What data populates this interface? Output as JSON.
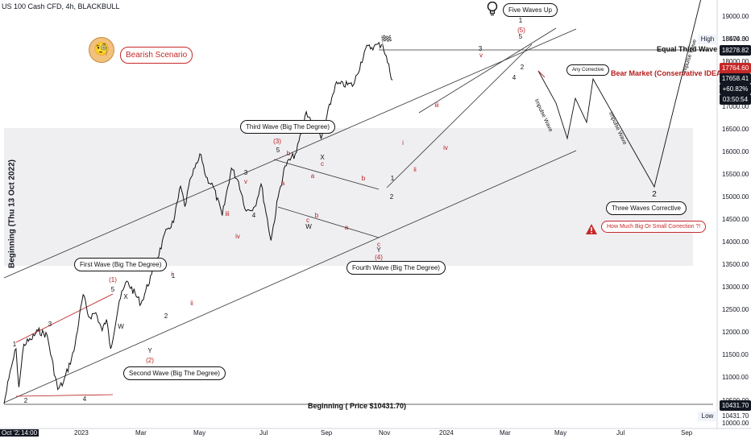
{
  "header": {
    "symbol_text": "US 100 Cash CFD, 4h, BLACKBULL"
  },
  "left_axis_title": "Beginning (Thu 13 Oct 2022)",
  "colors": {
    "price": "#111111",
    "wave_red": "#b71c1c",
    "bubble_red": "#c62828",
    "zone": "#e9eaee",
    "low_tag": "#131722"
  },
  "price_axis": {
    "ticks": [
      "19000.00",
      "18500.00",
      "18000.00",
      "17500.00",
      "17000.00",
      "16500.00",
      "16000.00",
      "15500.00",
      "15000.00",
      "14500.00",
      "14000.00",
      "13500.00",
      "13000.00",
      "12500.00",
      "12000.00",
      "11500.00",
      "11000.00",
      "10500.00",
      "10000.00"
    ],
    "high_label": "High",
    "high_value": "18474.30",
    "tag_top": "18278.82",
    "tag_mid": "17764.60",
    "current_price": "17658.41",
    "current_change": "+60.82%",
    "countdown": "03:50:54",
    "beginning_tag": "10431.70",
    "low_label": "Low",
    "low_value": "10431.70"
  },
  "time_axis": {
    "labels": [
      "Oct '22",
      "14:00",
      "2023",
      "Mar",
      "May",
      "Jul",
      "Sep",
      "Nov",
      "2024",
      "Mar",
      "May",
      "Jul",
      "Sep"
    ]
  },
  "annotations": {
    "first_wave": "First Wave (Big The Degree)",
    "second_wave": "Second Wave (Big The Degree)",
    "third_wave": "Third Wave (Big The Degree)",
    "fourth_wave": "Fourth Wave (Big The Degree)",
    "five_waves_up": "Five Waves Up",
    "bearish_scenario": "Bearish Scenario",
    "any_corrective": "Any Corrective",
    "three_waves_corrective": "Three Waves Corrective",
    "how_much": "How Much Big Or Small Correction ?!",
    "equal_third_wave": "Equal Third Wave",
    "bear_market": "Bear Market (Conservative IDEA)",
    "beginning_price": "Beginning ( Price $10431.70)",
    "impulse_wave_1": "Impulse Wave",
    "impulse_wave_2": "Impulse Wave",
    "impulse_wave_3": "Impulse Wave"
  },
  "wave_marks": [
    {
      "t": "1",
      "c": "k"
    },
    {
      "t": "2",
      "c": "k"
    },
    {
      "t": "3",
      "c": "k"
    },
    {
      "t": "4",
      "c": "k"
    },
    {
      "t": "(1)",
      "c": "r"
    },
    {
      "t": "5",
      "c": "k"
    },
    {
      "t": "X",
      "c": "k"
    },
    {
      "t": "W",
      "c": "k"
    },
    {
      "t": "Y",
      "c": "k"
    },
    {
      "t": "(2)",
      "c": "r"
    },
    {
      "t": "i",
      "c": "r"
    },
    {
      "t": "ii",
      "c": "r"
    },
    {
      "t": "1",
      "c": "k"
    },
    {
      "t": "2",
      "c": "k"
    },
    {
      "t": "iii",
      "c": "r"
    },
    {
      "t": "iv",
      "c": "r"
    },
    {
      "t": "3",
      "c": "k"
    },
    {
      "t": "4",
      "c": "k"
    },
    {
      "t": "v",
      "c": "r"
    },
    {
      "t": "(3)",
      "c": "r"
    },
    {
      "t": "5",
      "c": "k"
    },
    {
      "t": "b",
      "c": "r"
    },
    {
      "t": "a",
      "c": "r"
    },
    {
      "t": "a",
      "c": "r"
    },
    {
      "t": "b",
      "c": "r"
    },
    {
      "t": "c",
      "c": "r"
    },
    {
      "t": "W",
      "c": "k"
    },
    {
      "t": "X",
      "c": "k"
    },
    {
      "t": "c",
      "c": "r"
    },
    {
      "t": "a",
      "c": "r"
    },
    {
      "t": "b",
      "c": "r"
    },
    {
      "t": "c",
      "c": "r"
    },
    {
      "t": "Y",
      "c": "k"
    },
    {
      "t": "(4)",
      "c": "r"
    },
    {
      "t": "1",
      "c": "k"
    },
    {
      "t": "2",
      "c": "k"
    },
    {
      "t": "i",
      "c": "r"
    },
    {
      "t": "ii",
      "c": "r"
    },
    {
      "t": "iii",
      "c": "r"
    },
    {
      "t": "iv",
      "c": "r"
    },
    {
      "t": "3",
      "c": "k"
    },
    {
      "t": "v",
      "c": "r"
    },
    {
      "t": "4",
      "c": "k"
    },
    {
      "t": "5",
      "c": "k"
    },
    {
      "t": "(5)",
      "c": "r"
    },
    {
      "t": "1",
      "c": "k"
    },
    {
      "t": "2",
      "c": "k"
    }
  ],
  "chart_data": {
    "type": "line",
    "title": "US 100 Cash CFD, 4h, BLACKBULL",
    "ylim": [
      10000,
      19300
    ],
    "x_start": "2022-10-13",
    "series": [
      {
        "values": [
          {
            "d": "2022-10-13",
            "p": 10431.7
          },
          {
            "d": "2022-10-20",
            "p": 11000
          },
          {
            "d": "2022-10-25",
            "p": 11350
          },
          {
            "d": "2022-10-30",
            "p": 11650
          },
          {
            "d": "2022-11-03",
            "p": 10800
          },
          {
            "d": "2022-11-10",
            "p": 11750
          },
          {
            "d": "2022-11-20",
            "p": 11850
          },
          {
            "d": "2022-11-30",
            "p": 12050
          },
          {
            "d": "2022-12-13",
            "p": 11950
          },
          {
            "d": "2022-12-28",
            "p": 10750
          },
          {
            "d": "2023-01-05",
            "p": 10900
          },
          {
            "d": "2023-01-20",
            "p": 11600
          },
          {
            "d": "2023-02-02",
            "p": 12850
          },
          {
            "d": "2023-02-10",
            "p": 12350
          },
          {
            "d": "2023-02-20",
            "p": 12450
          },
          {
            "d": "2023-03-01",
            "p": 12050
          },
          {
            "d": "2023-03-07",
            "p": 12300
          },
          {
            "d": "2023-03-13",
            "p": 11650
          },
          {
            "d": "2023-03-25",
            "p": 12700
          },
          {
            "d": "2023-04-05",
            "p": 13150
          },
          {
            "d": "2023-04-25",
            "p": 12650
          },
          {
            "d": "2023-05-10",
            "p": 13300
          },
          {
            "d": "2023-06-01",
            "p": 14300
          },
          {
            "d": "2023-06-10",
            "p": 14450
          },
          {
            "d": "2023-06-20",
            "p": 15250
          },
          {
            "d": "2023-06-26",
            "p": 14800
          },
          {
            "d": "2023-07-05",
            "p": 15450
          },
          {
            "d": "2023-07-19",
            "p": 15950
          },
          {
            "d": "2023-07-26",
            "p": 15450
          },
          {
            "d": "2023-08-05",
            "p": 15250
          },
          {
            "d": "2023-08-18",
            "p": 14600
          },
          {
            "d": "2023-08-31",
            "p": 15650
          },
          {
            "d": "2023-09-10",
            "p": 15350
          },
          {
            "d": "2023-09-21",
            "p": 14700
          },
          {
            "d": "2023-10-03",
            "p": 14800
          },
          {
            "d": "2023-10-12",
            "p": 15300
          },
          {
            "d": "2023-10-26",
            "p": 14050
          },
          {
            "d": "2023-11-05",
            "p": 15000
          },
          {
            "d": "2023-11-15",
            "p": 15700
          },
          {
            "d": "2023-12-01",
            "p": 16000
          },
          {
            "d": "2023-12-15",
            "p": 16900
          },
          {
            "d": "2024-01-05",
            "p": 16300
          },
          {
            "d": "2024-01-25",
            "p": 17500
          },
          {
            "d": "2024-02-20",
            "p": 17500
          },
          {
            "d": "2024-03-08",
            "p": 18300
          },
          {
            "d": "2024-03-20",
            "p": 18350
          },
          {
            "d": "2024-04-01",
            "p": 18400
          },
          {
            "d": "2024-04-15",
            "p": 17600
          }
        ]
      }
    ]
  }
}
